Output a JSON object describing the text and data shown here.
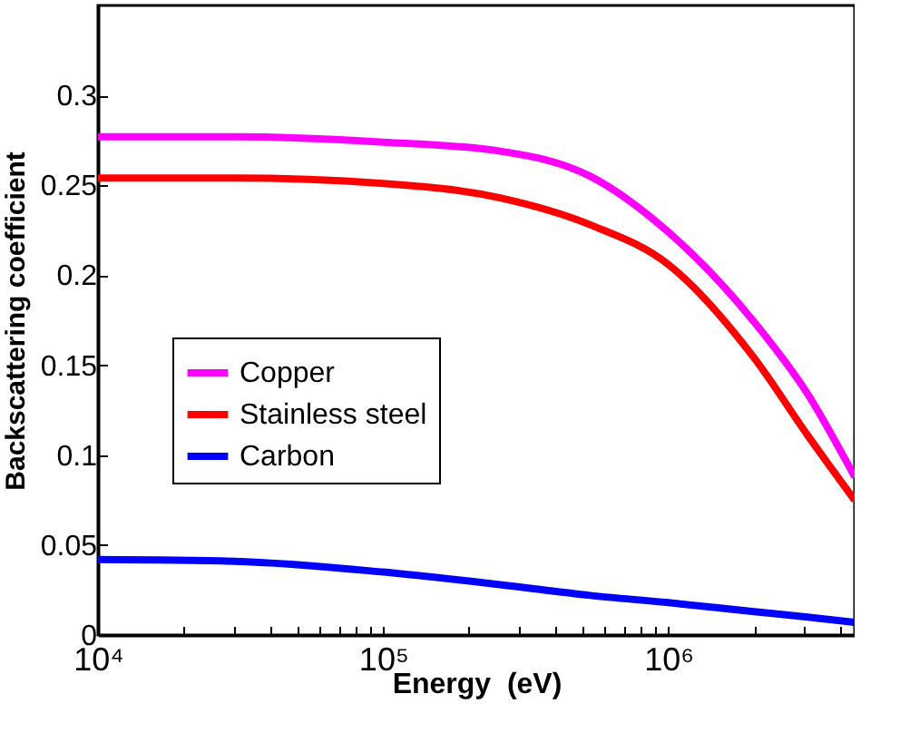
{
  "chart_data": {
    "type": "line",
    "xlabel": "Energy  (eV)",
    "ylabel": "Backscattering coefficient",
    "log": "x",
    "x": [
      10000,
      30000,
      100000,
      257000,
      533000,
      1000000,
      2000000,
      3080000,
      4500000
    ],
    "series": [
      {
        "name": "Copper",
        "color": "#ff00ff",
        "values": [
          0.277,
          0.277,
          0.274,
          0.269,
          0.255,
          0.224,
          0.174,
          0.134,
          0.088
        ]
      },
      {
        "name": "Stainless steel",
        "color": "#ff0000",
        "values": [
          0.254,
          0.254,
          0.251,
          0.243,
          0.228,
          0.206,
          0.154,
          0.111,
          0.075
        ]
      },
      {
        "name": "Carbon",
        "color": "#0000ff",
        "values": [
          0.042,
          0.041,
          0.035,
          0.028,
          0.022,
          0.018,
          0.013,
          0.01,
          0.007
        ]
      }
    ],
    "xlim": [
      10000,
      4500000
    ],
    "xticks": [
      {
        "value": 10000,
        "label": "10⁴"
      },
      {
        "value": 20000,
        "label": null
      },
      {
        "value": 30000,
        "label": null
      },
      {
        "value": 40000,
        "label": null
      },
      {
        "value": 50000,
        "label": null
      },
      {
        "value": 60000,
        "label": null
      },
      {
        "value": 70000,
        "label": null
      },
      {
        "value": 80000,
        "label": null
      },
      {
        "value": 90000,
        "label": null
      },
      {
        "value": 100000,
        "label": "10⁵"
      },
      {
        "value": 200000,
        "label": null
      },
      {
        "value": 300000,
        "label": null
      },
      {
        "value": 400000,
        "label": null
      },
      {
        "value": 500000,
        "label": null
      },
      {
        "value": 600000,
        "label": null
      },
      {
        "value": 700000,
        "label": null
      },
      {
        "value": 800000,
        "label": null
      },
      {
        "value": 900000,
        "label": null
      },
      {
        "value": 1000000,
        "label": "10⁶"
      },
      {
        "value": 2000000,
        "label": null
      },
      {
        "value": 3000000,
        "label": null
      },
      {
        "value": 4000000,
        "label": null
      }
    ],
    "ylim": [
      0,
      0.35
    ],
    "yticks": [
      0,
      0.05,
      0.1,
      0.15,
      0.2,
      0.25,
      0.3
    ],
    "grid": false,
    "legend": "center left",
    "line_style": "solid",
    "marker": "none"
  }
}
